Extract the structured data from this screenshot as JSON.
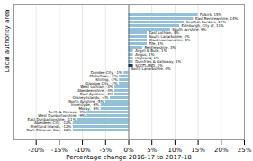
{
  "chart_data": {
    "type": "bar",
    "orientation": "horizontal",
    "xlabel": "Percentage change 2016-17 to 2017-18",
    "ylabel": "Local authority area",
    "categories": [
      "Falkirk, 15%",
      "East Renfrewshire, 14%",
      "Scottish Borders, 12%",
      "Edinburgh, City of, 11%",
      "South Ayrshire, 9%",
      "East Lothian, 4%",
      "South Lanarkshire, 4%",
      "Clackmannanshire, 4%",
      "Fife, 4%",
      "Renfrewshire, 3%",
      "Argyll & Bute, 1%",
      "Angus, 1%",
      "Highland, 1%",
      "Dumfries & Galloway, 1%",
      "SCOTLAND, 1%",
      "North Lanarkshire, 0%",
      "Dundee City, -1%",
      "Midlothian, -2%",
      "Stirling, -2%",
      "Glasgow City, -2%",
      "West Lothian, -3%",
      "Aberdeenshire, -3%",
      "East Ayrshire, -3%",
      "Orkney Islands, -4%",
      "North Ayrshire, -5%",
      "Inverclyde, -6%",
      "Moray, -6%",
      "Perth & Kinross, -9%",
      "West Dunbartonshire, -9%",
      "East Dunbartonshire, -11%",
      "Aberdeen City, -12%",
      "Shetland Islands, -12%",
      "Na h-Eileanan Siar, -12%"
    ],
    "values": [
      15,
      14,
      12,
      11,
      9,
      4,
      4,
      4,
      4,
      3,
      1,
      1,
      1,
      1,
      1,
      0,
      -1,
      -2,
      -2,
      -2,
      -3,
      -3,
      -3,
      -4,
      -5,
      -6,
      -6,
      -9,
      -9,
      -11,
      -12,
      -12,
      -12
    ],
    "colors": [
      "#92c0d8",
      "#92c0d8",
      "#92c0d8",
      "#92c0d8",
      "#92c0d8",
      "#92c0d8",
      "#92c0d8",
      "#92c0d8",
      "#92c0d8",
      "#92c0d8",
      "#92c0d8",
      "#92c0d8",
      "#92c0d8",
      "#92c0d8",
      "#1f3864",
      "#92c0d8",
      "#92c0d8",
      "#92c0d8",
      "#92c0d8",
      "#92c0d8",
      "#92c0d8",
      "#92c0d8",
      "#92c0d8",
      "#92c0d8",
      "#92c0d8",
      "#92c0d8",
      "#92c0d8",
      "#92c0d8",
      "#92c0d8",
      "#92c0d8",
      "#92c0d8",
      "#92c0d8",
      "#92c0d8"
    ],
    "xlim": [
      -25,
      25
    ],
    "xticks": [
      {
        "value": -20,
        "label": "-20%"
      },
      {
        "value": -15,
        "label": "-15%"
      },
      {
        "value": -10,
        "label": "-10%"
      },
      {
        "value": -5,
        "label": "-5%"
      },
      {
        "value": 0,
        "label": "0%"
      },
      {
        "value": 5,
        "label": "5%"
      },
      {
        "value": 10,
        "label": "10%"
      },
      {
        "value": 15,
        "label": "15%"
      },
      {
        "value": 20,
        "label": "20%"
      },
      {
        "value": 25,
        "label": "25%"
      }
    ],
    "grid": true,
    "tick_labels": "x"
  }
}
